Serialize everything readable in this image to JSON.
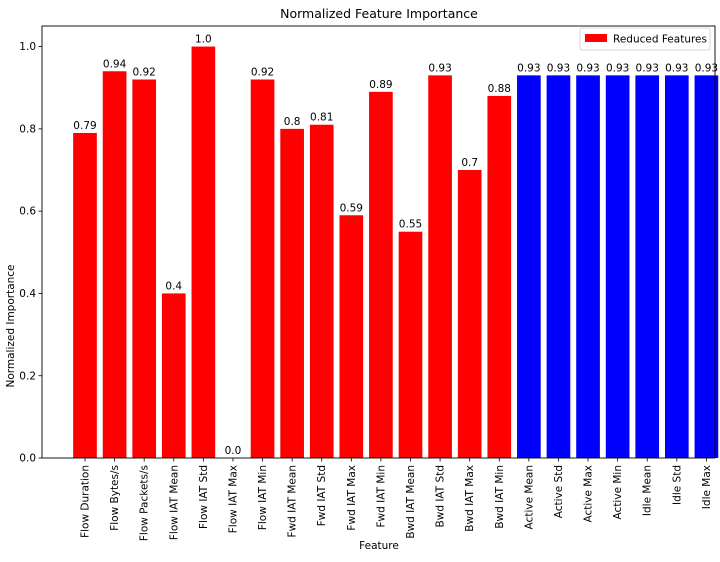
{
  "chart_data": {
    "type": "bar",
    "title": "Normalized Feature Importance",
    "xlabel": "Feature",
    "ylabel": "Normalized Importance",
    "ylim": [
      0,
      1.05
    ],
    "yticks": [
      0.0,
      0.2,
      0.4,
      0.6,
      0.8,
      1.0
    ],
    "ytick_labels": [
      "0.0",
      "0.2",
      "0.4",
      "0.6",
      "0.8",
      "1.0"
    ],
    "grid": false,
    "legend": {
      "placement": "top-right",
      "entries": [
        {
          "label": "Reduced Features",
          "color": "#ff0000"
        }
      ]
    },
    "categories": [
      "Flow Duration",
      "Flow Bytes/s",
      "Flow Packets/s",
      "Flow IAT Mean",
      "Flow IAT Std",
      "Flow IAT Max",
      "Flow IAT Min",
      "Fwd IAT Mean",
      "Fwd IAT Std",
      "Fwd IAT Max",
      "Fwd IAT Min",
      "Bwd IAT Mean",
      "Bwd IAT Std",
      "Bwd IAT Max",
      "Bwd IAT Min",
      "Active Mean",
      "Active Std",
      "Active Max",
      "Active Min",
      "Idle Mean",
      "Idle Std",
      "Idle Max",
      "Idle Min"
    ],
    "values": [
      0.79,
      0.94,
      0.92,
      0.4,
      1.0,
      0.0,
      0.92,
      0.8,
      0.81,
      0.59,
      0.89,
      0.55,
      0.93,
      0.7,
      0.88,
      0.93,
      0.93,
      0.93,
      0.93,
      0.93,
      0.93,
      0.93,
      0.93
    ],
    "value_labels": [
      "0.79",
      "0.94",
      "0.92",
      "0.4",
      "1.0",
      "0.0",
      "0.92",
      "0.8",
      "0.81",
      "0.59",
      "0.89",
      "0.55",
      "0.93",
      "0.7",
      "0.88",
      "0.93",
      "0.93",
      "0.93",
      "0.93",
      "0.93",
      "0.93",
      "0.93",
      "0.93"
    ],
    "colors": [
      "#ff0000",
      "#ff0000",
      "#ff0000",
      "#ff0000",
      "#ff0000",
      "#ff0000",
      "#ff0000",
      "#ff0000",
      "#ff0000",
      "#ff0000",
      "#ff0000",
      "#ff0000",
      "#ff0000",
      "#ff0000",
      "#ff0000",
      "#0000ff",
      "#0000ff",
      "#0000ff",
      "#0000ff",
      "#0000ff",
      "#0000ff",
      "#0000ff",
      "#0000ff"
    ]
  }
}
